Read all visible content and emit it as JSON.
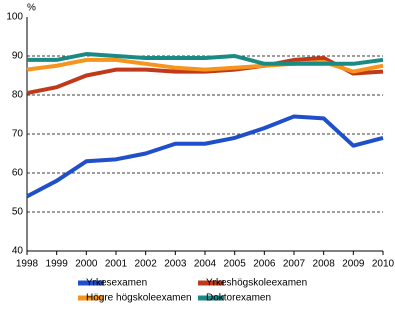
{
  "chart_data": {
    "type": "line",
    "y_label": "%",
    "x": [
      1998,
      1999,
      2000,
      2001,
      2002,
      2003,
      2004,
      2005,
      2006,
      2007,
      2008,
      2009,
      2010
    ],
    "xlim": [
      1998,
      2010
    ],
    "xticks": [
      1998,
      1999,
      2000,
      2001,
      2002,
      2003,
      2004,
      2005,
      2006,
      2007,
      2008,
      2009,
      2010
    ],
    "ylim": [
      40,
      100
    ],
    "yticks": [
      40,
      50,
      60,
      70,
      80,
      90,
      100
    ],
    "grid": true,
    "series": [
      {
        "name": "Yrkesexamen",
        "color": "#1f4fc9",
        "values": [
          54,
          58,
          63,
          63.5,
          65,
          67.5,
          67.5,
          69,
          71.5,
          74.5,
          74,
          67,
          69
        ]
      },
      {
        "name": "Yrkeshögskoleexamen",
        "color": "#c0391b",
        "values": [
          80.5,
          82,
          85,
          86.5,
          86.5,
          86,
          86,
          86.5,
          87.5,
          89,
          89.5,
          85.5,
          86
        ]
      },
      {
        "name": "Högre högskoleexamen",
        "color": "#f7941d",
        "values": [
          86.5,
          87.5,
          89,
          89,
          88,
          87,
          86.5,
          87,
          87.5,
          88,
          88.5,
          86,
          87.5
        ]
      },
      {
        "name": "Doktorexamen",
        "color": "#1a8b84",
        "values": [
          89,
          89,
          90.5,
          90,
          89.5,
          89.5,
          89.5,
          90,
          88,
          88,
          88,
          88,
          89
        ]
      }
    ]
  }
}
